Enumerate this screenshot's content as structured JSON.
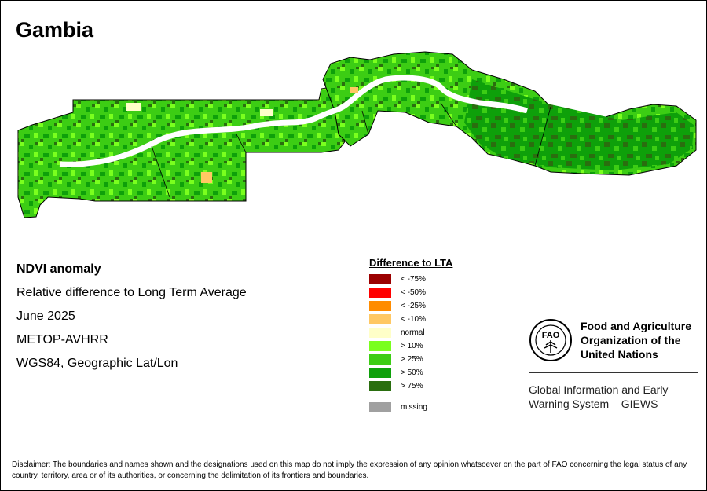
{
  "title": "Gambia",
  "info": {
    "lines": [
      "NDVI anomaly",
      "Relative difference to Long Term Average",
      "June 2025",
      "METOP-AVHRR",
      "WGS84, Geographic Lat/Lon"
    ]
  },
  "legend": {
    "title": "Difference to LTA",
    "items": [
      {
        "label": "< -75%",
        "color": "#9b0000"
      },
      {
        "label": "< -50%",
        "color": "#ff0000"
      },
      {
        "label": "< -25%",
        "color": "#ff8c00"
      },
      {
        "label": "< -10%",
        "color": "#ffc864"
      },
      {
        "label": "normal",
        "color": "#ffffc8"
      },
      {
        "label": "> 10%",
        "color": "#7aff1e"
      },
      {
        "label": "> 25%",
        "color": "#3ccd14"
      },
      {
        "label": "> 50%",
        "color": "#0ea00a"
      },
      {
        "label": "> 75%",
        "color": "#2a6e0f"
      }
    ],
    "missing": {
      "label": "missing",
      "color": "#a0a0a0"
    }
  },
  "fao": {
    "logo_letters": "FAO",
    "name_lines": [
      "Food and Agriculture",
      "Organization of the",
      "United Nations"
    ],
    "giews_lines": [
      "Global Information and Early",
      "Warning System – GIEWS"
    ]
  },
  "disclaimer": "Disclaimer: The boundaries and names shown and the designations used on this map do not imply the expression of any opinion whatsoever on the part of FAO concerning the legal status of any country, territory, area or of its authorities, or concerning the delimitation of its frontiers and boundaries."
}
